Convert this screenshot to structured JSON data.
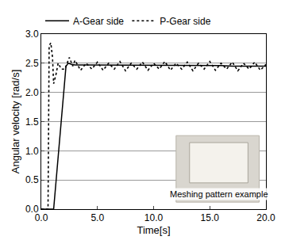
{
  "chart_data": {
    "type": "line",
    "x_label": "Time[s]",
    "y_label": "Angular velocity [rad/s]",
    "series": [
      {
        "name": "A-Gear side",
        "color": "#000000",
        "line_style": "solid",
        "x": [
          0,
          1.1,
          2.2,
          2.4,
          2.7,
          3.0,
          4.0,
          5.0,
          6.0,
          7.0,
          8.0,
          9.0,
          10.0,
          11.0,
          12.0,
          13.0,
          14.0,
          15.0,
          16.0,
          17.0,
          18.0,
          19.0,
          20.0
        ],
        "values": [
          0,
          0,
          2.45,
          2.5,
          2.48,
          2.47,
          2.47,
          2.47,
          2.47,
          2.46,
          2.46,
          2.46,
          2.46,
          2.46,
          2.46,
          2.46,
          2.46,
          2.46,
          2.46,
          2.45,
          2.45,
          2.45,
          2.45
        ]
      },
      {
        "name": "P-Gear side",
        "color": "#000000",
        "line_style": "dot",
        "x": [
          0,
          0.6,
          0.7,
          0.85,
          1.0,
          1.1,
          1.3,
          1.5,
          1.8,
          2.1,
          2.5,
          2.8,
          3.0,
          3.5,
          4.0,
          4.5,
          5.0,
          5.5,
          6.0,
          6.5,
          7.0,
          7.5,
          8.0,
          8.5,
          9.0,
          9.5,
          10.0,
          10.5,
          11.0,
          11.5,
          12.0,
          12.5,
          13.0,
          13.5,
          14.0,
          14.5,
          15.0,
          15.5,
          16.0,
          16.5,
          17.0,
          17.5,
          18.0,
          18.5,
          19.0,
          19.5,
          20.0
        ],
        "values": [
          0,
          0,
          2.8,
          2.85,
          2.6,
          2.15,
          2.3,
          2.5,
          2.4,
          2.4,
          2.6,
          2.45,
          2.55,
          2.38,
          2.5,
          2.4,
          2.52,
          2.38,
          2.5,
          2.4,
          2.53,
          2.37,
          2.5,
          2.4,
          2.52,
          2.38,
          2.5,
          2.4,
          2.53,
          2.38,
          2.5,
          2.4,
          2.52,
          2.37,
          2.5,
          2.4,
          2.53,
          2.38,
          2.5,
          2.4,
          2.52,
          2.37,
          2.5,
          2.4,
          2.52,
          2.38,
          2.48
        ]
      }
    ],
    "xlim": [
      0,
      20
    ],
    "ylim": [
      0,
      3
    ],
    "xticks": [
      {
        "value": 0,
        "label": "0.0"
      },
      {
        "value": 5,
        "label": "5.0"
      },
      {
        "value": 10,
        "label": "10.0"
      },
      {
        "value": 15,
        "label": "15.0"
      },
      {
        "value": 20,
        "label": "20.0"
      }
    ],
    "yticks": [
      {
        "value": 0,
        "label": "0.0"
      },
      0.5,
      {
        "value": 1,
        "label": "1.0"
      },
      1.5,
      {
        "value": 2,
        "label": "2.0"
      },
      2.5,
      {
        "value": 3,
        "label": "3.0"
      }
    ],
    "grid": true,
    "legend": "top",
    "annotations": [
      {
        "text": "Meshing pattern example"
      }
    ]
  }
}
